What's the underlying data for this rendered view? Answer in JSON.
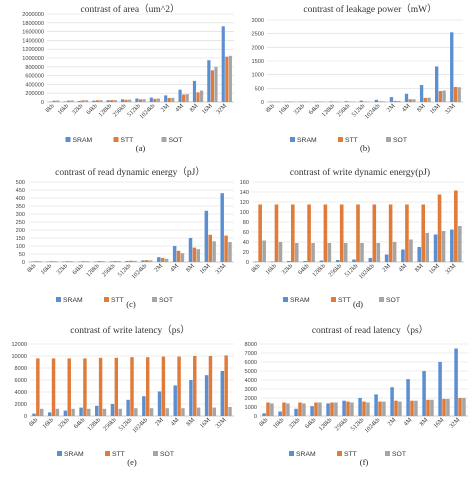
{
  "colors": {
    "SRAM": "#5b8fd1",
    "STT": "#e07b39",
    "SOT": "#a5a5a5",
    "grid": "#d9d9d9"
  },
  "chart_data": [
    {
      "type": "bar",
      "title": "contrast of area（um^2）",
      "caption": "(a)",
      "categories": [
        "8kb",
        "16kb",
        "32kb",
        "64kb",
        "128kb",
        "256kb",
        "512kb",
        "1024kb",
        "2M",
        "4M",
        "8M",
        "16M",
        "32M"
      ],
      "yticks": [
        "0",
        "200000",
        "400000",
        "600000",
        "800000",
        "1000000",
        "1200000",
        "1400000",
        "1600000",
        "1800000",
        "2000000"
      ],
      "ylim": [
        0,
        2000000
      ],
      "legend_position": "bottom",
      "series": [
        {
          "name": "SRAM",
          "values": [
            5000,
            12000,
            22000,
            30000,
            40000,
            60000,
            80000,
            100000,
            150000,
            280000,
            480000,
            950000,
            1720000
          ]
        },
        {
          "name": "STT",
          "values": [
            30000,
            32000,
            38000,
            40000,
            44000,
            50000,
            60000,
            72000,
            90000,
            170000,
            220000,
            720000,
            1030000
          ]
        },
        {
          "name": "SOT",
          "values": [
            35000,
            36000,
            40000,
            42000,
            46000,
            55000,
            65000,
            78000,
            95000,
            180000,
            260000,
            800000,
            1050000
          ]
        }
      ]
    },
    {
      "type": "bar",
      "title": "contrast of leakage power（mW）",
      "caption": "(b)",
      "categories": [
        "8kb",
        "16kb",
        "32kb",
        "64kb",
        "128kb",
        "256kb",
        "512kb",
        "1024kb",
        "2M",
        "4M",
        "8M",
        "16M",
        "32M"
      ],
      "yticks": [
        "0",
        "500",
        "1000",
        "1500",
        "2000",
        "2500",
        "3000"
      ],
      "ylim": [
        0,
        3000
      ],
      "legend_position": "bottom",
      "series": [
        {
          "name": "SRAM",
          "values": [
            5,
            8,
            12,
            15,
            20,
            30,
            50,
            80,
            180,
            300,
            620,
            1300,
            2550
          ]
        },
        {
          "name": "STT",
          "values": [
            3,
            4,
            5,
            6,
            8,
            10,
            15,
            25,
            40,
            100,
            150,
            400,
            550
          ]
        },
        {
          "name": "SOT",
          "values": [
            3,
            4,
            5,
            6,
            8,
            10,
            15,
            25,
            40,
            100,
            160,
            420,
            540
          ]
        }
      ]
    },
    {
      "type": "bar",
      "title": "contrast of read dynamic energy（pJ）",
      "caption": "(c)",
      "categories": [
        "8kb",
        "16kb",
        "32kb",
        "64kb",
        "128kb",
        "256kb",
        "512kb",
        "1024kb",
        "2M",
        "4M",
        "8M",
        "16M",
        "32M"
      ],
      "yticks": [
        "0",
        "50",
        "100",
        "150",
        "200",
        "250",
        "300",
        "350",
        "400",
        "450",
        "500"
      ],
      "ylim": [
        0,
        500
      ],
      "legend_position": "bottom",
      "series": [
        {
          "name": "SRAM",
          "values": [
            1,
            1,
            2,
            2,
            3,
            4,
            6,
            10,
            30,
            100,
            150,
            320,
            430
          ]
        },
        {
          "name": "STT",
          "values": [
            5,
            5,
            5,
            5,
            6,
            6,
            8,
            12,
            25,
            70,
            90,
            170,
            165
          ]
        },
        {
          "name": "SOT",
          "values": [
            5,
            5,
            5,
            5,
            5,
            6,
            7,
            10,
            20,
            55,
            80,
            130,
            125
          ]
        }
      ]
    },
    {
      "type": "bar",
      "title": "contrast of write dynamic energy(pJ)",
      "caption": "(d)",
      "categories": [
        "8kb",
        "16kb",
        "32kb",
        "64kb",
        "128kb",
        "256kb",
        "512kb",
        "1024kb",
        "2M",
        "4M",
        "8M",
        "16M",
        "32M"
      ],
      "yticks": [
        "0",
        "20",
        "40",
        "60",
        "80",
        "100",
        "120",
        "140",
        "160"
      ],
      "ylim": [
        0,
        160
      ],
      "legend_position": "bottom",
      "series": [
        {
          "name": "SRAM",
          "values": [
            1,
            1,
            2,
            2,
            3,
            4,
            5,
            8,
            15,
            25,
            30,
            55,
            65
          ]
        },
        {
          "name": "STT",
          "values": [
            115,
            115,
            115,
            115,
            115,
            115,
            115,
            115,
            115,
            115,
            115,
            135,
            143
          ]
        },
        {
          "name": "SOT",
          "values": [
            43,
            40,
            38,
            38,
            38,
            38,
            38,
            38,
            40,
            45,
            58,
            62,
            72
          ]
        }
      ]
    },
    {
      "type": "bar",
      "title": "contrast of write latency（ps）",
      "caption": "(e)",
      "categories": [
        "8kb",
        "16kb",
        "32kb",
        "64kb",
        "128kb",
        "256kb",
        "512kb",
        "1024kb",
        "2M",
        "4M",
        "8M",
        "16M",
        "32M"
      ],
      "yticks": [
        "0",
        "2000",
        "4000",
        "6000",
        "8000",
        "10000",
        "12000"
      ],
      "ylim": [
        0,
        12000
      ],
      "legend_position": "bottom",
      "series": [
        {
          "name": "SRAM",
          "values": [
            400,
            600,
            900,
            1400,
            1700,
            2000,
            2700,
            3300,
            4100,
            5100,
            6000,
            6800,
            7500
          ]
        },
        {
          "name": "STT",
          "values": [
            9600,
            9600,
            9600,
            9600,
            9700,
            9700,
            9800,
            9800,
            9900,
            9900,
            10000,
            10000,
            10100
          ]
        },
        {
          "name": "SOT",
          "values": [
            1200,
            1200,
            1200,
            1200,
            1200,
            1200,
            1300,
            1300,
            1300,
            1300,
            1400,
            1400,
            1500
          ]
        }
      ]
    },
    {
      "type": "bar",
      "title": "contrast of read latency（ps）",
      "caption": "(f)",
      "categories": [
        "8kb",
        "16kb",
        "32kb",
        "64kb",
        "128kb",
        "256kb",
        "512kb",
        "1024kb",
        "2M",
        "4M",
        "8M",
        "16M",
        "32M"
      ],
      "yticks": [
        "0",
        "1000",
        "2000",
        "3000",
        "4000",
        "5000",
        "6000",
        "7000",
        "8000"
      ],
      "ylim": [
        0,
        8000
      ],
      "legend_position": "bottom",
      "series": [
        {
          "name": "SRAM",
          "values": [
            300,
            500,
            800,
            1100,
            1400,
            1700,
            2000,
            2400,
            3200,
            4100,
            5000,
            6000,
            7500
          ]
        },
        {
          "name": "STT",
          "values": [
            1500,
            1500,
            1500,
            1500,
            1500,
            1600,
            1600,
            1600,
            1700,
            1700,
            1800,
            1900,
            2000
          ]
        },
        {
          "name": "SOT",
          "values": [
            1400,
            1400,
            1400,
            1500,
            1500,
            1500,
            1500,
            1600,
            1600,
            1700,
            1800,
            1900,
            2000
          ]
        }
      ]
    }
  ]
}
